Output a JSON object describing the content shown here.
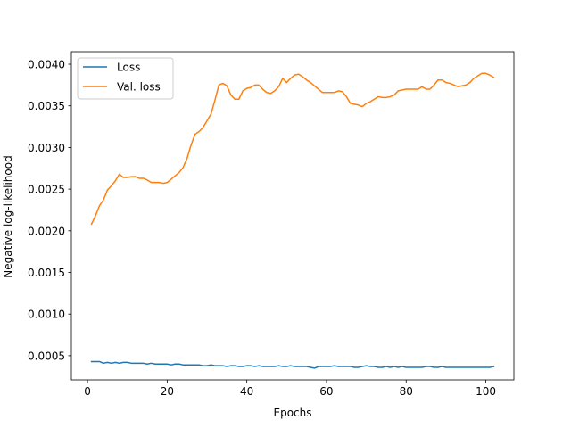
{
  "chart_data": {
    "type": "line",
    "title": "",
    "xlabel": "Epochs",
    "ylabel": "Negative log-likelihood",
    "xlim": [
      -4.05,
      107.05
    ],
    "ylim": [
      0.00021,
      0.00415
    ],
    "xticks": [
      0,
      20,
      40,
      60,
      80,
      100
    ],
    "yticks": [
      0.0005,
      0.001,
      0.0015,
      0.002,
      0.0025,
      0.003,
      0.0035,
      0.004
    ],
    "ytick_labels": [
      "0.0005",
      "0.0010",
      "0.0015",
      "0.0020",
      "0.0025",
      "0.0030",
      "0.0035",
      "0.0040"
    ],
    "grid": false,
    "legend": "top-left",
    "series": [
      {
        "name": "Loss",
        "color": "#1f77b4",
        "x": [
          1,
          2,
          3,
          4,
          5,
          6,
          7,
          8,
          9,
          10,
          11,
          12,
          13,
          14,
          15,
          16,
          17,
          18,
          19,
          20,
          21,
          22,
          23,
          24,
          25,
          26,
          27,
          28,
          29,
          30,
          31,
          32,
          33,
          34,
          35,
          36,
          37,
          38,
          39,
          40,
          41,
          42,
          43,
          44,
          45,
          46,
          47,
          48,
          49,
          50,
          51,
          52,
          53,
          54,
          55,
          56,
          57,
          58,
          59,
          60,
          61,
          62,
          63,
          64,
          65,
          66,
          67,
          68,
          69,
          70,
          71,
          72,
          73,
          74,
          75,
          76,
          77,
          78,
          79,
          80,
          81,
          82,
          83,
          84,
          85,
          86,
          87,
          88,
          89,
          90,
          91,
          92,
          93,
          94,
          95,
          96,
          97,
          98,
          99,
          100,
          101,
          102
        ],
        "values": [
          0.00043,
          0.00043,
          0.00043,
          0.00041,
          0.00042,
          0.00041,
          0.00042,
          0.00041,
          0.00042,
          0.00042,
          0.00041,
          0.00041,
          0.00041,
          0.00041,
          0.0004,
          0.00041,
          0.0004,
          0.0004,
          0.0004,
          0.0004,
          0.00039,
          0.0004,
          0.0004,
          0.00039,
          0.00039,
          0.00039,
          0.00039,
          0.00039,
          0.00038,
          0.00038,
          0.00039,
          0.00038,
          0.00038,
          0.00038,
          0.00037,
          0.00038,
          0.00038,
          0.00037,
          0.00037,
          0.00038,
          0.00038,
          0.00037,
          0.00038,
          0.00037,
          0.00037,
          0.00037,
          0.00037,
          0.00038,
          0.00037,
          0.00037,
          0.00038,
          0.00037,
          0.00037,
          0.00037,
          0.00037,
          0.00036,
          0.00035,
          0.00037,
          0.00037,
          0.00037,
          0.00037,
          0.00038,
          0.00037,
          0.00037,
          0.00037,
          0.00037,
          0.00036,
          0.00036,
          0.00037,
          0.00038,
          0.00037,
          0.00037,
          0.00036,
          0.00036,
          0.00037,
          0.00036,
          0.00037,
          0.00036,
          0.00037,
          0.00036,
          0.00036,
          0.00036,
          0.00036,
          0.00036,
          0.00037,
          0.00037,
          0.00036,
          0.00036,
          0.00037,
          0.00036,
          0.00036,
          0.00036,
          0.00036,
          0.00036,
          0.00036,
          0.00036,
          0.00036,
          0.00036,
          0.00036,
          0.00036,
          0.00036,
          0.00037
        ]
      },
      {
        "name": "Val. loss",
        "color": "#ff7f0e",
        "x": [
          1,
          2,
          3,
          4,
          5,
          6,
          7,
          8,
          9,
          10,
          11,
          12,
          13,
          14,
          15,
          16,
          17,
          18,
          19,
          20,
          21,
          22,
          23,
          24,
          25,
          26,
          27,
          28,
          29,
          30,
          31,
          32,
          33,
          34,
          35,
          36,
          37,
          38,
          39,
          40,
          41,
          42,
          43,
          44,
          45,
          46,
          47,
          48,
          49,
          50,
          51,
          52,
          53,
          54,
          55,
          56,
          57,
          58,
          59,
          60,
          61,
          62,
          63,
          64,
          65,
          66,
          67,
          68,
          69,
          70,
          71,
          72,
          73,
          74,
          75,
          76,
          77,
          78,
          79,
          80,
          81,
          82,
          83,
          84,
          85,
          86,
          87,
          88,
          89,
          90,
          91,
          92,
          93,
          94,
          95,
          96,
          97,
          98,
          99,
          100,
          101,
          102
        ],
        "values": [
          0.00208,
          0.00218,
          0.0023,
          0.00237,
          0.00249,
          0.00254,
          0.0026,
          0.00268,
          0.00264,
          0.00264,
          0.00265,
          0.00265,
          0.00263,
          0.00263,
          0.00261,
          0.00258,
          0.00258,
          0.00258,
          0.00257,
          0.00258,
          0.00262,
          0.00266,
          0.0027,
          0.00276,
          0.00287,
          0.00303,
          0.00316,
          0.00319,
          0.00324,
          0.00332,
          0.0034,
          0.00357,
          0.00375,
          0.00377,
          0.00374,
          0.00363,
          0.00358,
          0.00358,
          0.00368,
          0.00371,
          0.00372,
          0.00375,
          0.00375,
          0.0037,
          0.00366,
          0.00365,
          0.00368,
          0.00373,
          0.00383,
          0.00378,
          0.00383,
          0.00387,
          0.00388,
          0.00385,
          0.00381,
          0.00378,
          0.00374,
          0.0037,
          0.00366,
          0.00366,
          0.00366,
          0.00366,
          0.00368,
          0.00367,
          0.00361,
          0.00353,
          0.00352,
          0.00351,
          0.00349,
          0.00353,
          0.00355,
          0.00358,
          0.00361,
          0.0036,
          0.0036,
          0.00361,
          0.00363,
          0.00368,
          0.00369,
          0.0037,
          0.0037,
          0.0037,
          0.0037,
          0.00373,
          0.0037,
          0.0037,
          0.00375,
          0.00381,
          0.00381,
          0.00378,
          0.00377,
          0.00375,
          0.00373,
          0.00374,
          0.00375,
          0.00378,
          0.00383,
          0.00386,
          0.00389,
          0.00389,
          0.00387,
          0.00384
        ]
      }
    ]
  }
}
